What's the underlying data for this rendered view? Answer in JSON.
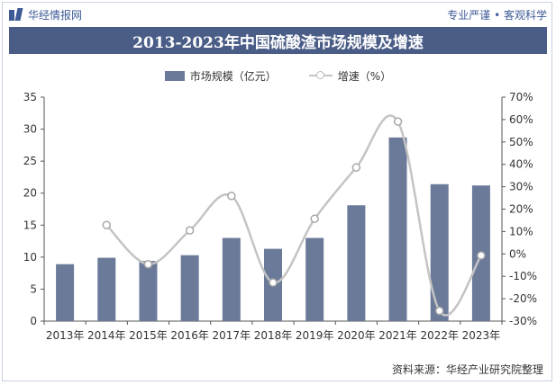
{
  "header": {
    "brand_name": "华经情报网",
    "slogan": "专业严谨 • 客观科学"
  },
  "chart_data": {
    "type": "bar+line",
    "title": "2013-2023年中国硫酸渣市场规模及增速",
    "categories": [
      "2013年",
      "2014年",
      "2015年",
      "2016年",
      "2017年",
      "2018年",
      "2019年",
      "2020年",
      "2021年",
      "2022年",
      "2023年"
    ],
    "series": [
      {
        "name": "市场规模（亿元）",
        "type": "bar",
        "axis": "left",
        "values": [
          8.9,
          9.9,
          9.4,
          10.3,
          13.0,
          11.3,
          13.0,
          18.1,
          28.7,
          21.4,
          21.2
        ]
      },
      {
        "name": "增速（%）",
        "type": "line",
        "smooth": true,
        "axis": "right",
        "values": [
          null,
          12.9,
          -4.6,
          10.5,
          25.9,
          -12.8,
          15.7,
          38.6,
          59.1,
          -25.4,
          -0.7
        ]
      }
    ],
    "yleft": {
      "min": 0,
      "max": 35,
      "ticks": [
        0,
        5,
        10,
        15,
        20,
        25,
        30,
        35
      ]
    },
    "yright": {
      "min": -30,
      "max": 70,
      "ticks": [
        "-30%",
        "-20%",
        "-10%",
        "0%",
        "10%",
        "20%",
        "30%",
        "40%",
        "50%",
        "60%",
        "70%"
      ]
    },
    "legend_position": "top-center",
    "grid": false,
    "colors": {
      "bar": "#6c7a99",
      "line": "#c4c4c4",
      "marker_border": "#a8a8a8"
    }
  },
  "footer": {
    "source": "资料来源：华经产业研究院整理"
  }
}
